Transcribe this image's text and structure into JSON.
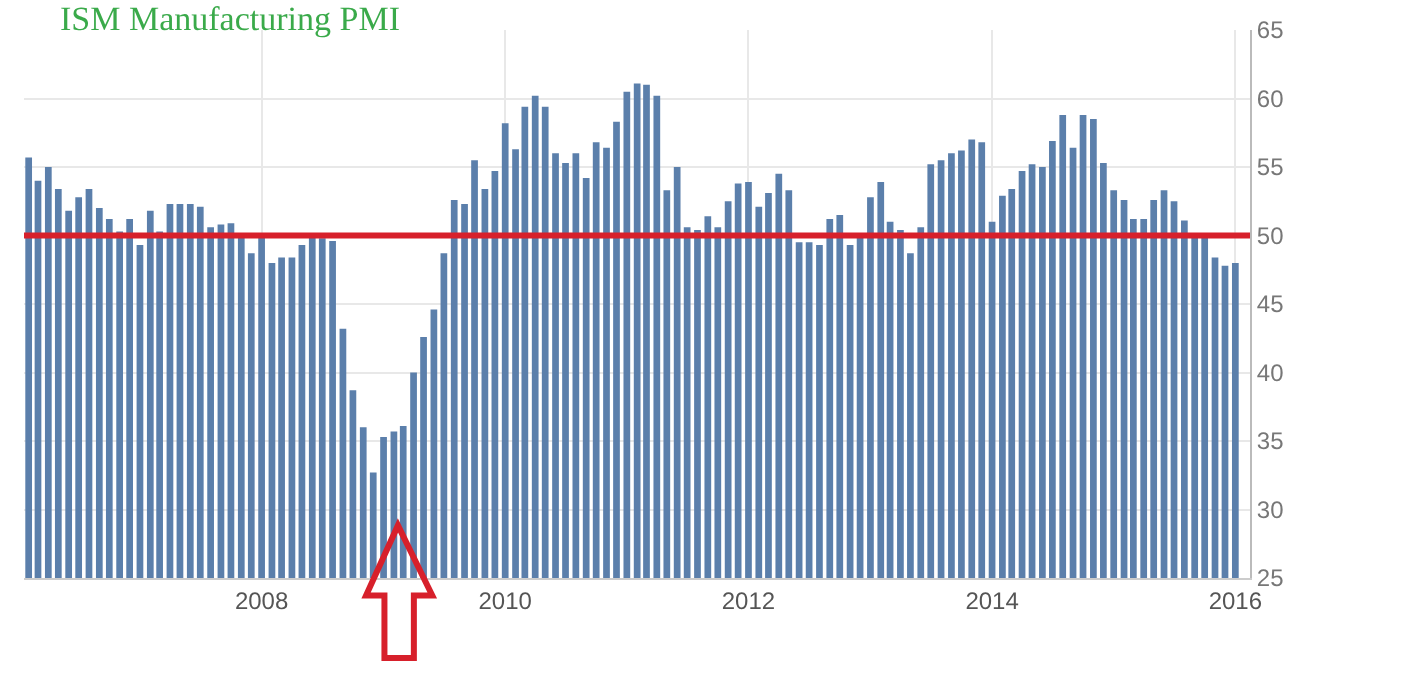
{
  "chart_data": {
    "type": "bar",
    "title": "ISM Manufacturing PMI",
    "x": [
      "2006-02",
      "2006-03",
      "2006-04",
      "2006-05",
      "2006-06",
      "2006-07",
      "2006-08",
      "2006-09",
      "2006-10",
      "2006-11",
      "2006-12",
      "2007-01",
      "2007-02",
      "2007-03",
      "2007-04",
      "2007-05",
      "2007-06",
      "2007-07",
      "2007-08",
      "2007-09",
      "2007-10",
      "2007-11",
      "2007-12",
      "2008-01",
      "2008-02",
      "2008-03",
      "2008-04",
      "2008-05",
      "2008-06",
      "2008-07",
      "2008-08",
      "2008-09",
      "2008-10",
      "2008-11",
      "2008-12",
      "2009-01",
      "2009-02",
      "2009-03",
      "2009-04",
      "2009-05",
      "2009-06",
      "2009-07",
      "2009-08",
      "2009-09",
      "2009-10",
      "2009-11",
      "2009-12",
      "2010-01",
      "2010-02",
      "2010-03",
      "2010-04",
      "2010-05",
      "2010-06",
      "2010-07",
      "2010-08",
      "2010-09",
      "2010-10",
      "2010-11",
      "2010-12",
      "2011-01",
      "2011-02",
      "2011-03",
      "2011-04",
      "2011-05",
      "2011-06",
      "2011-07",
      "2011-08",
      "2011-09",
      "2011-10",
      "2011-11",
      "2011-12",
      "2012-01",
      "2012-02",
      "2012-03",
      "2012-04",
      "2012-05",
      "2012-06",
      "2012-07",
      "2012-08",
      "2012-09",
      "2012-10",
      "2012-11",
      "2012-12",
      "2013-01",
      "2013-02",
      "2013-03",
      "2013-04",
      "2013-05",
      "2013-06",
      "2013-07",
      "2013-08",
      "2013-09",
      "2013-10",
      "2013-11",
      "2013-12",
      "2014-01",
      "2014-02",
      "2014-03",
      "2014-04",
      "2014-05",
      "2014-06",
      "2014-07",
      "2014-08",
      "2014-09",
      "2014-10",
      "2014-11",
      "2014-12",
      "2015-01",
      "2015-02",
      "2015-03",
      "2015-04",
      "2015-05",
      "2015-06",
      "2015-07",
      "2015-08",
      "2015-09",
      "2015-10",
      "2015-11",
      "2015-12",
      "2016-01"
    ],
    "series": [
      {
        "color": "#5b7fab",
        "values": [
          55.7,
          54.0,
          55.0,
          53.4,
          51.8,
          52.8,
          53.4,
          52.0,
          51.2,
          50.3,
          51.2,
          49.3,
          51.8,
          50.3,
          52.3,
          52.3,
          52.3,
          52.1,
          50.6,
          50.8,
          50.9,
          50.1,
          48.7,
          50.0,
          48.0,
          48.4,
          48.4,
          49.3,
          49.9,
          49.8,
          49.6,
          43.2,
          38.7,
          36.0,
          32.7,
          35.3,
          35.7,
          36.1,
          40.0,
          42.6,
          44.6,
          48.7,
          52.6,
          52.3,
          55.5,
          53.4,
          54.7,
          58.2,
          56.3,
          59.4,
          60.2,
          59.4,
          56.0,
          55.3,
          56.0,
          54.2,
          56.8,
          56.4,
          58.3,
          60.5,
          61.1,
          61.0,
          60.2,
          53.3,
          55.0,
          50.6,
          50.4,
          51.4,
          50.6,
          52.5,
          53.8,
          53.9,
          52.1,
          53.1,
          54.5,
          53.3,
          49.5,
          49.5,
          49.3,
          51.2,
          51.5,
          49.3,
          49.9,
          52.8,
          53.9,
          51.0,
          50.4,
          48.7,
          50.6,
          55.2,
          55.5,
          56.0,
          56.2,
          57.0,
          56.8,
          51.0,
          52.9,
          53.4,
          54.7,
          55.2,
          55.0,
          56.9,
          58.8,
          56.4,
          58.8,
          58.5,
          55.3,
          53.3,
          52.6,
          51.2,
          51.2,
          52.6,
          53.3,
          52.5,
          51.1,
          49.9,
          49.9,
          48.4,
          47.8,
          48.0
        ]
      }
    ],
    "xlim": [
      "2006-01-18",
      "2016-02-14"
    ],
    "xticks": [
      {
        "value": "2008-01-01",
        "label": "2008"
      },
      {
        "value": "2010-01-01",
        "label": "2010"
      },
      {
        "value": "2012-01-01",
        "label": "2012"
      },
      {
        "value": "2014-01-01",
        "label": "2014"
      },
      {
        "value": "2016-01-01",
        "label": "2016"
      }
    ],
    "ylim": [
      25,
      65
    ],
    "yticks": [
      25,
      30,
      35,
      40,
      45,
      50,
      55,
      60,
      65
    ],
    "ref_lines": [
      {
        "axis": "y",
        "value": 50,
        "color": "#d7202b"
      }
    ],
    "grid": true
  }
}
